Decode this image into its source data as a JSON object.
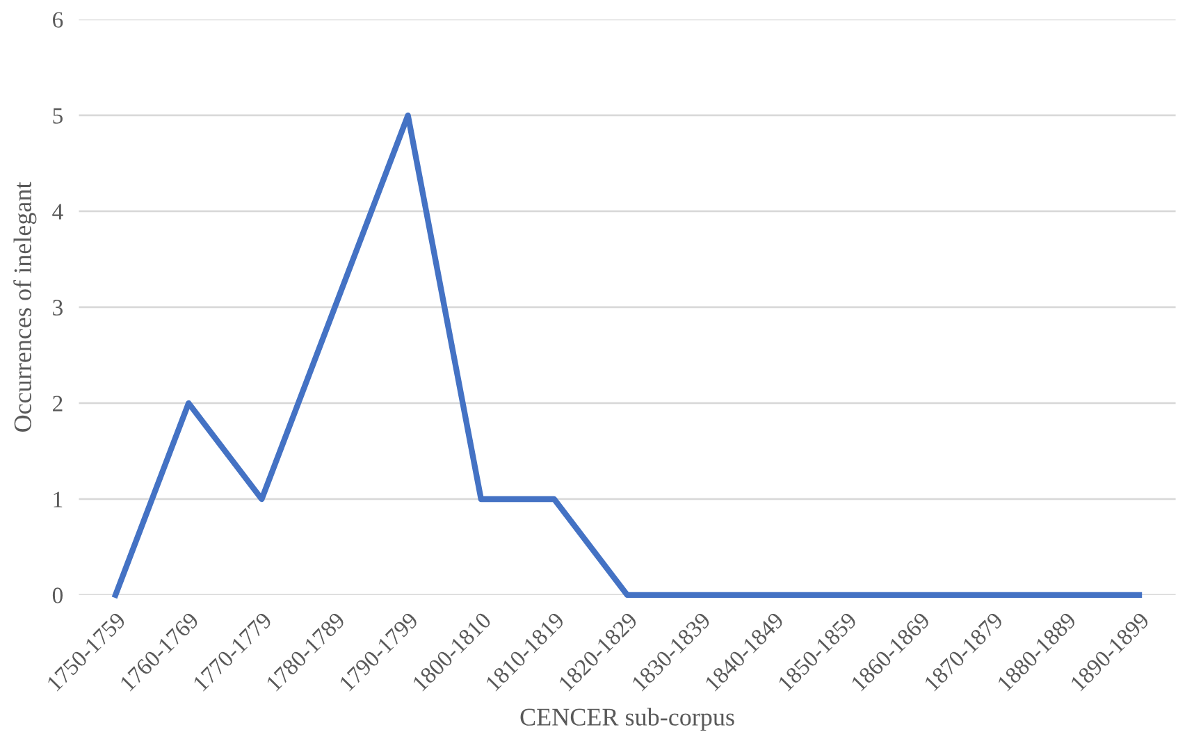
{
  "chart_data": {
    "type": "line",
    "xlabel": "CENCER sub-corpus",
    "ylabel": "Occurrences of inelegant",
    "categories": [
      "1750-1759",
      "1760-1769",
      "1770-1779",
      "1780-1789",
      "1790-1799",
      "1800-1810",
      "1810-1819",
      "1820-1829",
      "1830-1839",
      "1840-1849",
      "1850-1859",
      "1860-1869",
      "1870-1879",
      "1880-1889",
      "1890-1899"
    ],
    "series": [
      {
        "color": "#4472c4",
        "values": [
          0,
          2,
          1,
          3,
          5,
          1,
          1,
          0,
          0,
          0,
          0,
          0,
          0,
          0,
          0
        ]
      }
    ],
    "ylim": [
      0,
      6
    ],
    "yticks": [
      0,
      1,
      2,
      3,
      4,
      5,
      6
    ],
    "grid": "y",
    "marker": "none",
    "line_style": "solid"
  }
}
